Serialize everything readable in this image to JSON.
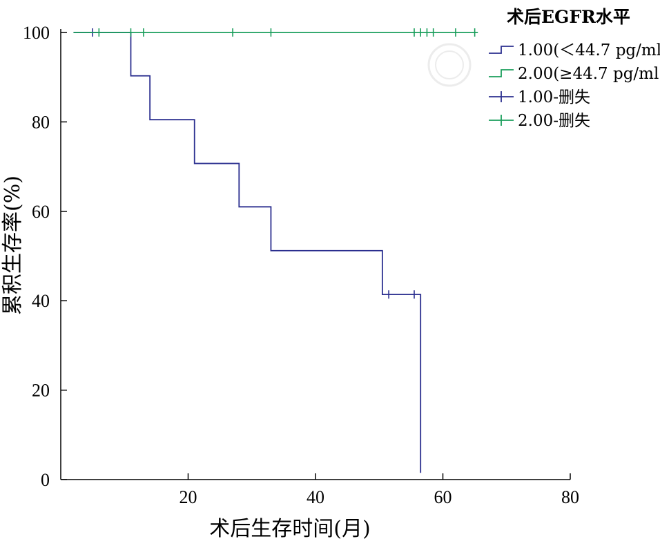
{
  "chart_data": {
    "type": "line",
    "subtype": "kaplan-meier step survival curve",
    "xlabel": "术后生存时间(月)",
    "ylabel": "累积生存率(%)",
    "xlim": [
      0,
      80
    ],
    "ylim": [
      0,
      100
    ],
    "xticks": [
      20,
      40,
      60,
      80
    ],
    "yticks": [
      0,
      20,
      40,
      60,
      80,
      100
    ],
    "grid": false,
    "legend_title": "术后EGFR水平",
    "legend_position": "top-right",
    "legend": [
      {
        "label": "1.00(＜44.7 pg/ml)",
        "marker": "step",
        "color": "#2b2f8f"
      },
      {
        "label": "2.00(≥44.7 pg/ml)",
        "marker": "step",
        "color": "#1a9e5b"
      },
      {
        "label": "1.00-删失",
        "marker": "plus",
        "color": "#2b2f8f"
      },
      {
        "label": "2.00-删失",
        "marker": "plus",
        "color": "#1a9e5b"
      }
    ],
    "series": [
      {
        "name": "1.00(＜44.7 pg/ml)",
        "color": "#2b2f8f",
        "x": [
          2,
          11,
          14,
          21,
          28,
          33,
          50.5,
          56.5,
          56.5
        ],
        "y": [
          100,
          90.3,
          80.5,
          70.7,
          61,
          51.2,
          41.4,
          41.4,
          1.5
        ],
        "censored": [
          {
            "x": 5,
            "y": 100
          },
          {
            "x": 51.5,
            "y": 41.4
          },
          {
            "x": 55.5,
            "y": 41.4
          }
        ]
      },
      {
        "name": "2.00(≥44.7 pg/ml)",
        "color": "#1a9e5b",
        "x": [
          2,
          65.5
        ],
        "y": [
          100,
          100
        ],
        "censored": [
          {
            "x": 6,
            "y": 100
          },
          {
            "x": 11,
            "y": 100
          },
          {
            "x": 13,
            "y": 100
          },
          {
            "x": 27,
            "y": 100
          },
          {
            "x": 33,
            "y": 100
          },
          {
            "x": 55.5,
            "y": 100
          },
          {
            "x": 56.5,
            "y": 100
          },
          {
            "x": 57.5,
            "y": 100
          },
          {
            "x": 58.5,
            "y": 100
          },
          {
            "x": 62,
            "y": 100
          },
          {
            "x": 65,
            "y": 100
          }
        ]
      }
    ]
  }
}
